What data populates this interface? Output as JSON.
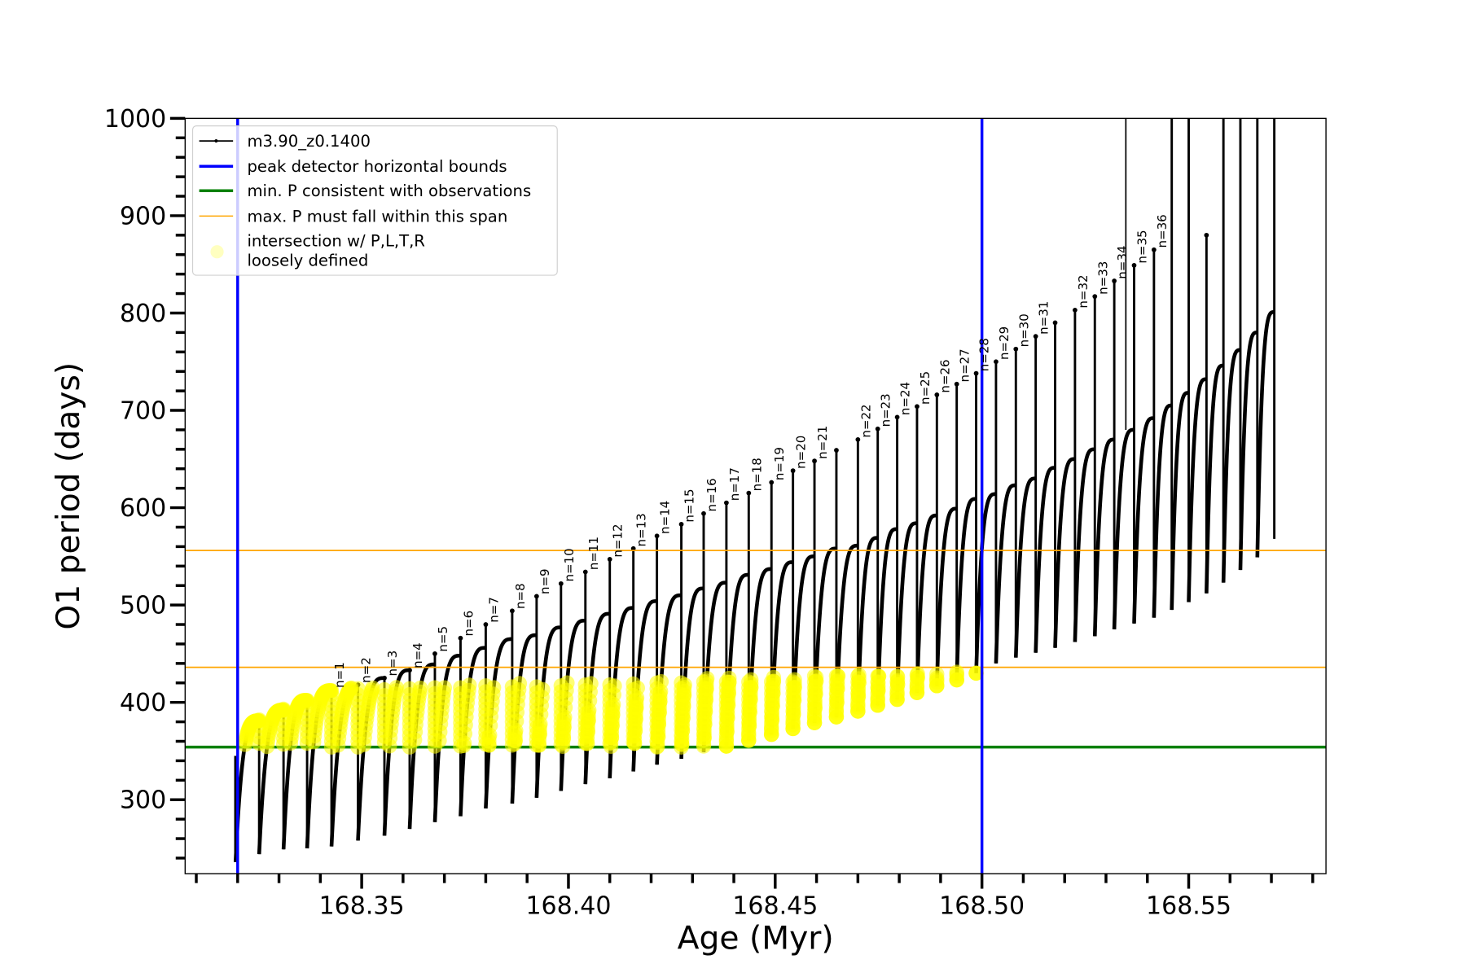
{
  "chart_data": {
    "type": "line",
    "xlabel": "Age (Myr)",
    "ylabel": "O1 period (days)",
    "xlim": [
      168.3073,
      168.5832
    ],
    "ylim": [
      224,
      1000
    ],
    "x_major_ticks": [
      168.35,
      168.4,
      168.45,
      168.5,
      168.55
    ],
    "x_tick_labels": [
      "168.35",
      "168.40",
      "168.45",
      "168.50",
      "168.55"
    ],
    "x_minor_tick_step": 0.01,
    "y_major_ticks": [
      300,
      400,
      500,
      600,
      700,
      800,
      900,
      1000
    ],
    "y_tick_labels": [
      "300",
      "400",
      "500",
      "600",
      "700",
      "800",
      "900",
      "1000"
    ],
    "y_minor_tick_step": 20,
    "grid": false,
    "legend_position": "top-left",
    "series": [
      {
        "name": "m3.90_z0.1400",
        "color": "#000000",
        "style": "line with point markers",
        "description_of_cycles": "each cycle: rise from previous dip to peak, spike to top, drop to dip",
        "start": {
          "age": 168.3195,
          "top": 345,
          "dip": 236
        },
        "cycles": [
          {
            "age": 168.3252,
            "peak": 381,
            "spike": 384,
            "dip": 244,
            "label": null
          },
          {
            "age": 168.3311,
            "peak": 392,
            "spike": 395,
            "dip": 249,
            "label": null
          },
          {
            "age": 168.3368,
            "peak": 402,
            "spike": 404,
            "dip": 250,
            "label": null
          },
          {
            "age": 168.3427,
            "peak": 412,
            "spike": 413,
            "dip": 252,
            "label": "n=1"
          },
          {
            "age": 168.3491,
            "peak": 416,
            "spike": 418,
            "dip": 258,
            "label": "n=2"
          },
          {
            "age": 168.3555,
            "peak": 425,
            "spike": 425,
            "dip": 263,
            "label": "n=3"
          },
          {
            "age": 168.3616,
            "peak": 433,
            "spike": 433,
            "dip": 270,
            "label": "n=4"
          },
          {
            "age": 168.3677,
            "peak": 439,
            "spike": 450,
            "dip": 277,
            "label": "n=5"
          },
          {
            "age": 168.3739,
            "peak": 448,
            "spike": 466,
            "dip": 283,
            "label": "n=6"
          },
          {
            "age": 168.38,
            "peak": 456,
            "spike": 480,
            "dip": 291,
            "label": "n=7"
          },
          {
            "age": 168.3864,
            "peak": 465,
            "spike": 494,
            "dip": 296,
            "label": "n=8"
          },
          {
            "age": 168.3923,
            "peak": 469,
            "spike": 509,
            "dip": 302,
            "label": "n=9"
          },
          {
            "age": 168.3982,
            "peak": 477,
            "spike": 522,
            "dip": 309,
            "label": "n=10"
          },
          {
            "age": 168.4041,
            "peak": 484,
            "spike": 534,
            "dip": 316,
            "label": "n=11"
          },
          {
            "age": 168.41,
            "peak": 491,
            "spike": 547,
            "dip": 322,
            "label": "n=12"
          },
          {
            "age": 168.4157,
            "peak": 497,
            "spike": 558,
            "dip": 329,
            "label": "n=13"
          },
          {
            "age": 168.4214,
            "peak": 504,
            "spike": 571,
            "dip": 336,
            "label": "n=14"
          },
          {
            "age": 168.4273,
            "peak": 510,
            "spike": 583,
            "dip": 342,
            "label": "n=15"
          },
          {
            "age": 168.4327,
            "peak": 517,
            "spike": 594,
            "dip": 349,
            "label": "n=16"
          },
          {
            "age": 168.4382,
            "peak": 523,
            "spike": 605,
            "dip": 355,
            "label": "n=17"
          },
          {
            "age": 168.4436,
            "peak": 531,
            "spike": 615,
            "dip": 361,
            "label": "n=18"
          },
          {
            "age": 168.4491,
            "peak": 537,
            "spike": 626,
            "dip": 367,
            "label": "n=19"
          },
          {
            "age": 168.4543,
            "peak": 544,
            "spike": 638,
            "dip": 373,
            "label": "n=20"
          },
          {
            "age": 168.4595,
            "peak": 550,
            "spike": 648,
            "dip": 379,
            "label": "n=21"
          },
          {
            "age": 168.4648,
            "peak": 558,
            "spike": 659,
            "dip": 385,
            "label": null
          },
          {
            "age": 168.47,
            "peak": 561,
            "spike": 670,
            "dip": 391,
            "label": "n=22"
          },
          {
            "age": 168.4748,
            "peak": 569,
            "spike": 681,
            "dip": 397,
            "label": "n=23"
          },
          {
            "age": 168.4795,
            "peak": 578,
            "spike": 693,
            "dip": 403,
            "label": "n=24"
          },
          {
            "age": 168.4843,
            "peak": 584,
            "spike": 704,
            "dip": 410,
            "label": "n=25"
          },
          {
            "age": 168.4891,
            "peak": 592,
            "spike": 716,
            "dip": 417,
            "label": "n=26"
          },
          {
            "age": 168.4939,
            "peak": 599,
            "spike": 727,
            "dip": 423,
            "label": "n=27"
          },
          {
            "age": 168.4986,
            "peak": 609,
            "spike": 738,
            "dip": 430,
            "label": "n=28"
          },
          {
            "age": 168.5034,
            "peak": 614,
            "spike": 750,
            "dip": 440,
            "label": "n=29"
          },
          {
            "age": 168.5082,
            "peak": 623,
            "spike": 763,
            "dip": 446,
            "label": "n=30"
          },
          {
            "age": 168.513,
            "peak": 630,
            "spike": 776,
            "dip": 451,
            "label": "n=31"
          },
          {
            "age": 168.5177,
            "peak": 641,
            "spike": 790,
            "dip": 456,
            "label": null
          },
          {
            "age": 168.5225,
            "peak": 650,
            "spike": 803,
            "dip": 462,
            "label": "n=32"
          },
          {
            "age": 168.5273,
            "peak": 660,
            "spike": 817,
            "dip": 468,
            "label": "n=33"
          },
          {
            "age": 168.532,
            "peak": 670,
            "spike": 833,
            "dip": 475,
            "label": "n=34"
          },
          {
            "age": 168.5368,
            "peak": 680,
            "spike": 849,
            "dip": 481,
            "label": "n=35"
          },
          {
            "age": 168.5416,
            "peak": 692,
            "spike": 865,
            "dip": 487,
            "label": "n=36"
          },
          {
            "age": 168.5459,
            "peak": 705,
            "spike": 1050,
            "dip": 495,
            "label": null
          },
          {
            "age": 168.55,
            "peak": 718,
            "spike": 1050,
            "dip": 503,
            "label": null
          },
          {
            "age": 168.5543,
            "peak": 732,
            "spike": 880,
            "dip": 512,
            "label": null
          },
          {
            "age": 168.5584,
            "peak": 746,
            "spike": 1050,
            "dip": 523,
            "label": null
          },
          {
            "age": 168.5625,
            "peak": 762,
            "spike": 1050,
            "dip": 536,
            "label": null
          },
          {
            "age": 168.5666,
            "peak": 780,
            "spike": 1050,
            "dip": 549,
            "label": null
          },
          {
            "age": 168.5707,
            "peak": 801,
            "spike": 1050,
            "dip": 568,
            "label": null
          }
        ],
        "extra_segments": [
          {
            "age": 168.5348,
            "from": 680,
            "to": 1050
          }
        ]
      }
    ],
    "vertical_lines": [
      {
        "age": 168.32,
        "color": "#0000ff"
      },
      {
        "age": 168.5,
        "color": "#0000ff"
      }
    ],
    "horizontal_lines": [
      {
        "period": 354,
        "color": "#008000",
        "role": "min"
      },
      {
        "period": 556,
        "color": "#ffa500",
        "role": "max-upper"
      },
      {
        "period": 436,
        "color": "#ffa500",
        "role": "max-lower"
      }
    ],
    "highlight": {
      "color": "#ffff00",
      "age_range": [
        168.32,
        168.5
      ],
      "period_min": 354,
      "period_max_range": [
        412,
        432
      ]
    },
    "legend": [
      {
        "label": "m3.90_z0.1400",
        "kind": "line-marker",
        "color": "#000000"
      },
      {
        "label": "peak detector horizontal bounds",
        "kind": "line",
        "color": "#0000ff"
      },
      {
        "label": "min. P consistent with observations",
        "kind": "line",
        "color": "#008000"
      },
      {
        "label": "max. P must fall within this span",
        "kind": "thin-line",
        "color": "#ffa500"
      },
      {
        "label": "intersection w/ P,L,T,R",
        "label2": "loosely defined",
        "kind": "dot",
        "color": "#ffffc0"
      }
    ]
  }
}
